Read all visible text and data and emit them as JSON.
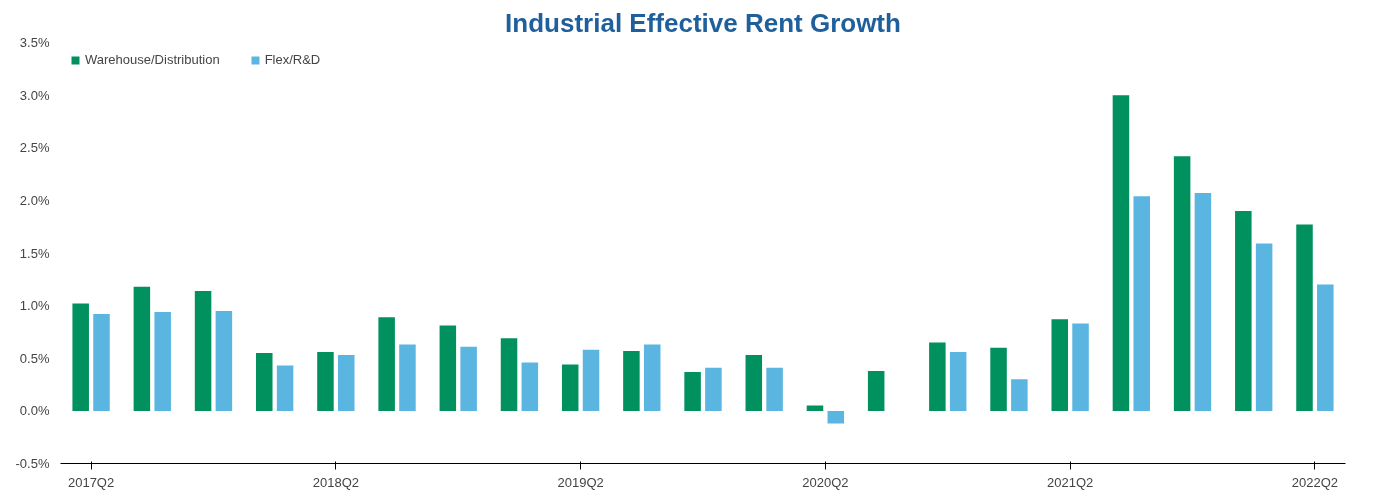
{
  "chart_data": {
    "type": "bar",
    "title": "Industrial Effective Rent Growth",
    "categories": [
      "2017Q2",
      null,
      null,
      null,
      "2018Q2",
      null,
      null,
      null,
      "2019Q2",
      null,
      null,
      null,
      "2020Q2",
      null,
      null,
      null,
      "2021Q2",
      null,
      null,
      null,
      "2022Q2"
    ],
    "series": [
      {
        "name": "Warehouse/Distribution",
        "color": "#00915f",
        "values": [
          1.02,
          1.18,
          1.14,
          0.55,
          0.56,
          0.89,
          0.81,
          0.69,
          0.44,
          0.57,
          0.37,
          0.53,
          0.05,
          0.38,
          0.65,
          0.6,
          0.87,
          3.0,
          2.42,
          1.9,
          1.77
        ]
      },
      {
        "name": "Flex/R&D",
        "color": "#5bb5e1",
        "values": [
          0.92,
          0.94,
          0.95,
          0.43,
          0.53,
          0.63,
          0.61,
          0.46,
          0.58,
          0.63,
          0.41,
          0.41,
          -0.12,
          0.0,
          0.56,
          0.3,
          0.83,
          2.04,
          2.07,
          1.59,
          1.2
        ]
      }
    ],
    "ylim": [
      -0.5,
      3.5
    ],
    "yticks": [
      {
        "value": -0.5,
        "label": "-0.5%"
      },
      {
        "value": 0,
        "label": "0.0%"
      },
      {
        "value": 0.5,
        "label": "0.5%"
      },
      {
        "value": 1,
        "label": "1.0%"
      },
      {
        "value": 1.5,
        "label": "1.5%"
      },
      {
        "value": 2,
        "label": "2.0%"
      },
      {
        "value": 2.5,
        "label": "2.5%"
      },
      {
        "value": 3,
        "label": "3.0%"
      },
      {
        "value": 3.5,
        "label": "3.5%"
      }
    ],
    "grid": false,
    "legend": "top left"
  }
}
